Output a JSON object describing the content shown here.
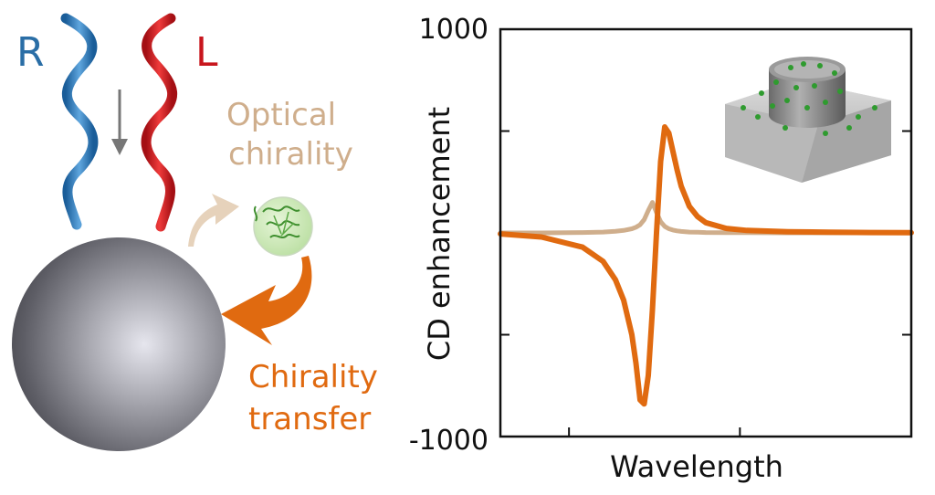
{
  "illustration": {
    "r_label": "R",
    "l_label": "L",
    "optical_label_1": "Optical",
    "optical_label_2": "chirality",
    "transfer_label_1": "Chirality",
    "transfer_label_2": "transfer",
    "colors": {
      "r_color": "#2a6ea6",
      "l_color": "#c8161d",
      "optical_color": "#cfae8c",
      "transfer_color": "#e06a10",
      "arrow_gray": "#777777"
    }
  },
  "chart_data": {
    "type": "line",
    "title": "",
    "xlabel": "Wavelength",
    "ylabel": "CD enhancement",
    "ylim": [
      -1000,
      1000
    ],
    "xlim": [
      0,
      100
    ],
    "y_tick_labels": [
      "1000",
      "-1000"
    ],
    "y_ticks": [
      -1000,
      -500,
      0,
      500,
      1000
    ],
    "x_ticks": [
      16.7,
      58.3
    ],
    "x": [
      0,
      10,
      20,
      25,
      28,
      30,
      32,
      33,
      34,
      35,
      36,
      37,
      38,
      39,
      40,
      41,
      42,
      43,
      44,
      46,
      48,
      50,
      55,
      60,
      70,
      80,
      90,
      100
    ],
    "series": [
      {
        "name": "chirality transfer",
        "color": "#e06a10",
        "values": [
          -5,
          -20,
          -70,
          -140,
          -230,
          -330,
          -500,
          -640,
          -820,
          -840,
          -700,
          -380,
          0,
          350,
          520,
          490,
          400,
          310,
          230,
          130,
          80,
          50,
          22,
          12,
          6,
          3,
          2,
          1
        ]
      },
      {
        "name": "optical chirality",
        "color": "#cfae8c",
        "values": [
          0,
          0,
          2,
          4,
          8,
          12,
          20,
          28,
          40,
          65,
          110,
          150,
          100,
          55,
          32,
          20,
          14,
          10,
          7,
          4,
          3,
          2,
          1,
          1,
          0,
          0,
          0,
          0
        ]
      }
    ]
  }
}
